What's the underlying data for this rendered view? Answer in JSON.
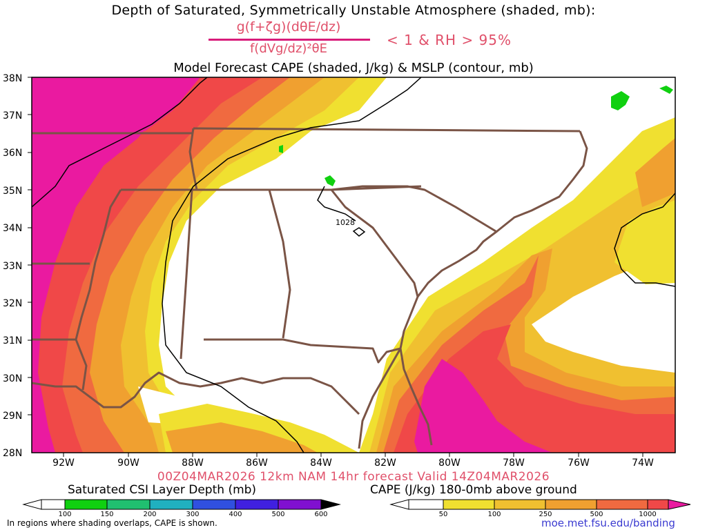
{
  "header": {
    "title_line1": "Depth of Saturated, Symmetrically Unstable Atmosphere (shaded, mb):",
    "numerator": "g(f+ζg)(dθE/dz)",
    "denominator": "f(dVg/dz)²θE",
    "condition": "< 1 & RH > 95%",
    "title_line2": "Model Forecast CAPE (shaded, J/kg) & MSLP (contour, mb)"
  },
  "map": {
    "lat_labels": [
      "38N",
      "37N",
      "36N",
      "35N",
      "34N",
      "33N",
      "32N",
      "31N",
      "30N",
      "29N",
      "28N"
    ],
    "lon_labels": [
      "92W",
      "90W",
      "88W",
      "86W",
      "84W",
      "82W",
      "80W",
      "78W",
      "76W",
      "74W"
    ],
    "isobar_label": "1028",
    "colors": {
      "cape_50": "#f0e030",
      "cape_100": "#f0c030",
      "cape_250": "#f0a030",
      "cape_500": "#f06a40",
      "cape_1000": "#f04848",
      "cape_max": "#ea1aa0",
      "csi_green": "#10d010",
      "borders": "#7a5446",
      "isobar": "#000000"
    }
  },
  "footer": {
    "forecast_line": "00Z04MAR2026 12km NAM 14hr forecast Valid 14Z04MAR2026",
    "csi_label": "Saturated CSI Layer Depth (mb)",
    "csi_ticks": [
      "100",
      "150",
      "200",
      "300",
      "400",
      "500",
      "600"
    ],
    "csi_colors": [
      "#ffffff",
      "#10d010",
      "#20c070",
      "#20b0c0",
      "#3050e0",
      "#4020e0",
      "#8010d0",
      "#000000"
    ],
    "cape_label": "CAPE (J/kg) 180-0mb above ground",
    "cape_ticks": [
      "50",
      "100",
      "250",
      "500",
      "1000"
    ],
    "cape_colors": [
      "#ffffff",
      "#f0e030",
      "#f0c030",
      "#f0a030",
      "#f06a40",
      "#f04848",
      "#ea1aa0"
    ],
    "note": "In regions where shading overlaps, CAPE is shown.",
    "url": "moe.met.fsu.edu/banding"
  }
}
